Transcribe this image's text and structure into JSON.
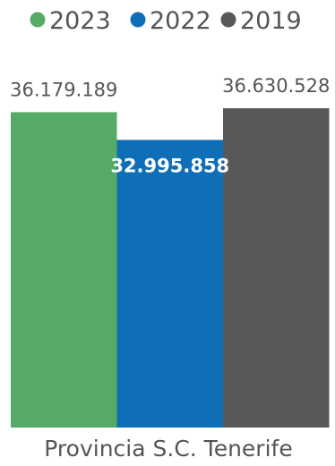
{
  "chart_data": {
    "type": "bar",
    "categories": [
      "Provincia S.C. Tenerife"
    ],
    "series": [
      {
        "name": "2023",
        "values": [
          36179189
        ],
        "label": "36.179.189",
        "color": "#55AB66",
        "label_position": "outside"
      },
      {
        "name": "2022",
        "values": [
          32995858
        ],
        "label": "32.995.858",
        "color": "#0E6EB8",
        "label_position": "inside"
      },
      {
        "name": "2019",
        "values": [
          36630528
        ],
        "label": "36.630.528",
        "color": "#585858",
        "label_position": "outside"
      }
    ],
    "ylim": [
      0,
      36630528
    ],
    "grid": false,
    "legend": "top"
  }
}
